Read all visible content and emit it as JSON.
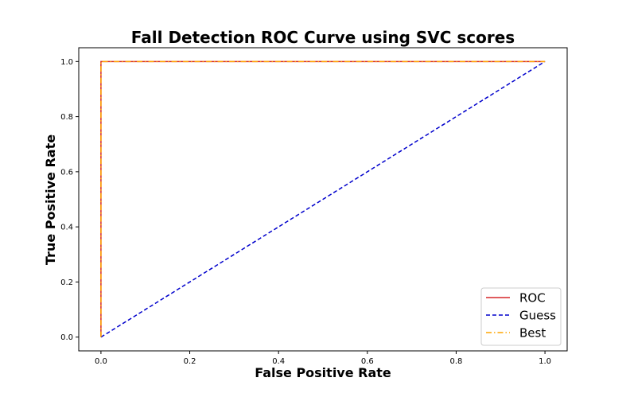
{
  "chart_data": {
    "type": "line",
    "title": "Fall Detection ROC Curve using SVC scores",
    "xlabel": "False Positive Rate",
    "ylabel": "True Positive Rate",
    "xlim": [
      -0.05,
      1.05
    ],
    "ylim": [
      -0.05,
      1.05
    ],
    "xticks": [
      0.0,
      0.2,
      0.4,
      0.6,
      0.8,
      1.0
    ],
    "yticks": [
      0.0,
      0.2,
      0.4,
      0.6,
      0.8,
      1.0
    ],
    "xtick_labels": [
      "0.0",
      "0.2",
      "0.4",
      "0.6",
      "0.8",
      "1.0"
    ],
    "ytick_labels": [
      "0.0",
      "0.2",
      "0.4",
      "0.6",
      "0.8",
      "1.0"
    ],
    "grid": false,
    "legend_position": "bottom-right",
    "series": [
      {
        "name": "ROC",
        "color": "#d62728",
        "style": "solid",
        "x": [
          0.0,
          0.0,
          1.0
        ],
        "y": [
          0.0,
          1.0,
          1.0
        ]
      },
      {
        "name": "Guess",
        "color": "#0000cc",
        "style": "dashed",
        "x": [
          0.0,
          1.0
        ],
        "y": [
          0.0,
          1.0
        ]
      },
      {
        "name": "Best",
        "color": "#ffa500",
        "style": "dashdot",
        "x": [
          0.0,
          0.0,
          1.0
        ],
        "y": [
          0.0,
          1.0,
          1.0
        ]
      }
    ]
  }
}
